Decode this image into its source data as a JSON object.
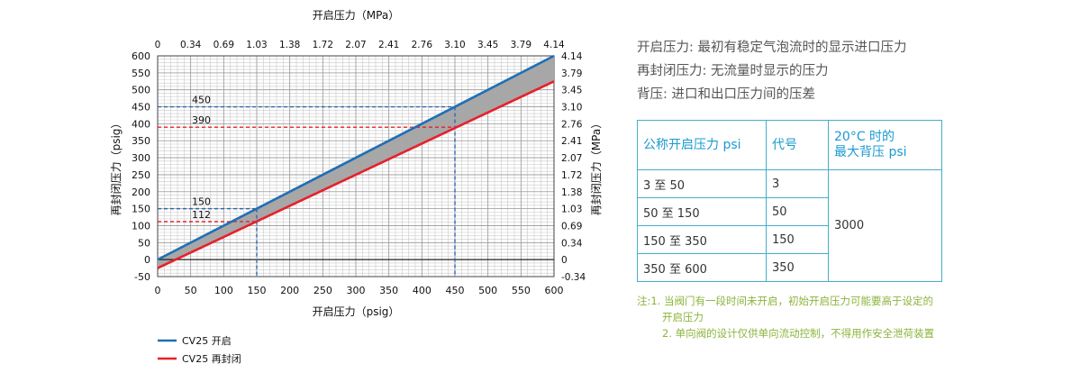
{
  "chart_data": {
    "type": "line",
    "top_axis_label": "开启压力（MPa）",
    "bottom_axis_label": "开启压力（psig）",
    "left_axis_label": "再封闭压力（psig）",
    "right_axis_label": "再封闭压力（MPa）",
    "xlim": [
      0,
      600
    ],
    "ylim": [
      -50,
      600
    ],
    "x_ticks": [
      0,
      50,
      100,
      150,
      200,
      250,
      300,
      350,
      400,
      450,
      500,
      550,
      600
    ],
    "y_ticks": [
      -50,
      0,
      50,
      100,
      150,
      200,
      250,
      300,
      350,
      400,
      450,
      500,
      550,
      600
    ],
    "top_tick_labels": [
      "0",
      "0.34",
      "0.69",
      "1.03",
      "1.38",
      "1.72",
      "2.07",
      "2.41",
      "2.76",
      "3.10",
      "3.45",
      "3.79",
      "4.14"
    ],
    "right_tick_labels": [
      "-0.34",
      "0",
      "0.34",
      "0.69",
      "1.03",
      "1.38",
      "1.72",
      "2.07",
      "2.41",
      "2.76",
      "3.10",
      "3.45",
      "3.79",
      "4.14"
    ],
    "series": [
      {
        "name": "CV25 开启",
        "color": "#1f6fb5",
        "x": [
          0,
          600
        ],
        "y": [
          0,
          600
        ]
      },
      {
        "name": "CV25 再封闭",
        "color": "#e8202a",
        "x": [
          0,
          600
        ],
        "y": [
          -25,
          525
        ]
      }
    ],
    "band_color": "#a7a7a7",
    "annotations": [
      {
        "label": "450",
        "x": 450,
        "y": 450,
        "color": "#2e67b0"
      },
      {
        "label": "390",
        "x": 450,
        "y": 390,
        "color": "#e8202a"
      },
      {
        "label": "150",
        "x": 150,
        "y": 150,
        "color": "#2e67b0"
      },
      {
        "label": "112",
        "x": 150,
        "y": 112,
        "color": "#e8202a"
      }
    ],
    "grid": true,
    "legend_position": "bottom-left"
  },
  "definitions": [
    "开启压力: 最初有稳定气泡流时的显示进口压力",
    "再封闭压力: 无流量时显示的压力",
    "背压: 进口和出口压力间的压差"
  ],
  "table": {
    "headers": [
      "公称开启压力 psi",
      "代号",
      "20°C 时的",
      "最大背压 psi"
    ],
    "rows": [
      {
        "range": "3 至 50",
        "code": "3"
      },
      {
        "range": "50 至 150",
        "code": "50"
      },
      {
        "range": "150 至 350",
        "code": "150"
      },
      {
        "range": "350 至 600",
        "code": "350"
      }
    ],
    "max_back_pressure": "3000"
  },
  "notes": [
    "注:1. 当阀门有一段时间未开启，初始开启压力可能要高于设定的",
    "开启压力",
    "2. 单向阀的设计仅供单向流动控制，不得用作安全泄荷装置"
  ]
}
